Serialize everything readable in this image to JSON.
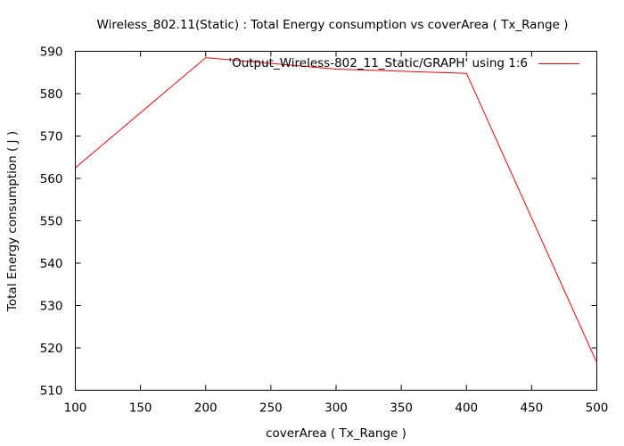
{
  "chart_data": {
    "type": "line",
    "title": "Wireless_802.11(Static) : Total Energy consumption vs coverArea ( Tx_Range )",
    "xlabel": "coverArea ( Tx_Range )",
    "ylabel": "Total Energy consumption ( J )",
    "xlim": [
      100,
      500
    ],
    "ylim": [
      510,
      590
    ],
    "xticks": [
      100,
      150,
      200,
      250,
      300,
      350,
      400,
      450,
      500
    ],
    "yticks": [
      510,
      520,
      530,
      540,
      550,
      560,
      570,
      580,
      590
    ],
    "grid": false,
    "legend_position": "top-right",
    "series": [
      {
        "name": "'Output_Wireless-802_11_Static/GRAPH' using 1:6",
        "color": "#ff0000",
        "x": [
          100,
          200,
          300,
          400,
          500
        ],
        "y": [
          562.5,
          588.5,
          585.8,
          584.8,
          516.5
        ]
      }
    ]
  }
}
